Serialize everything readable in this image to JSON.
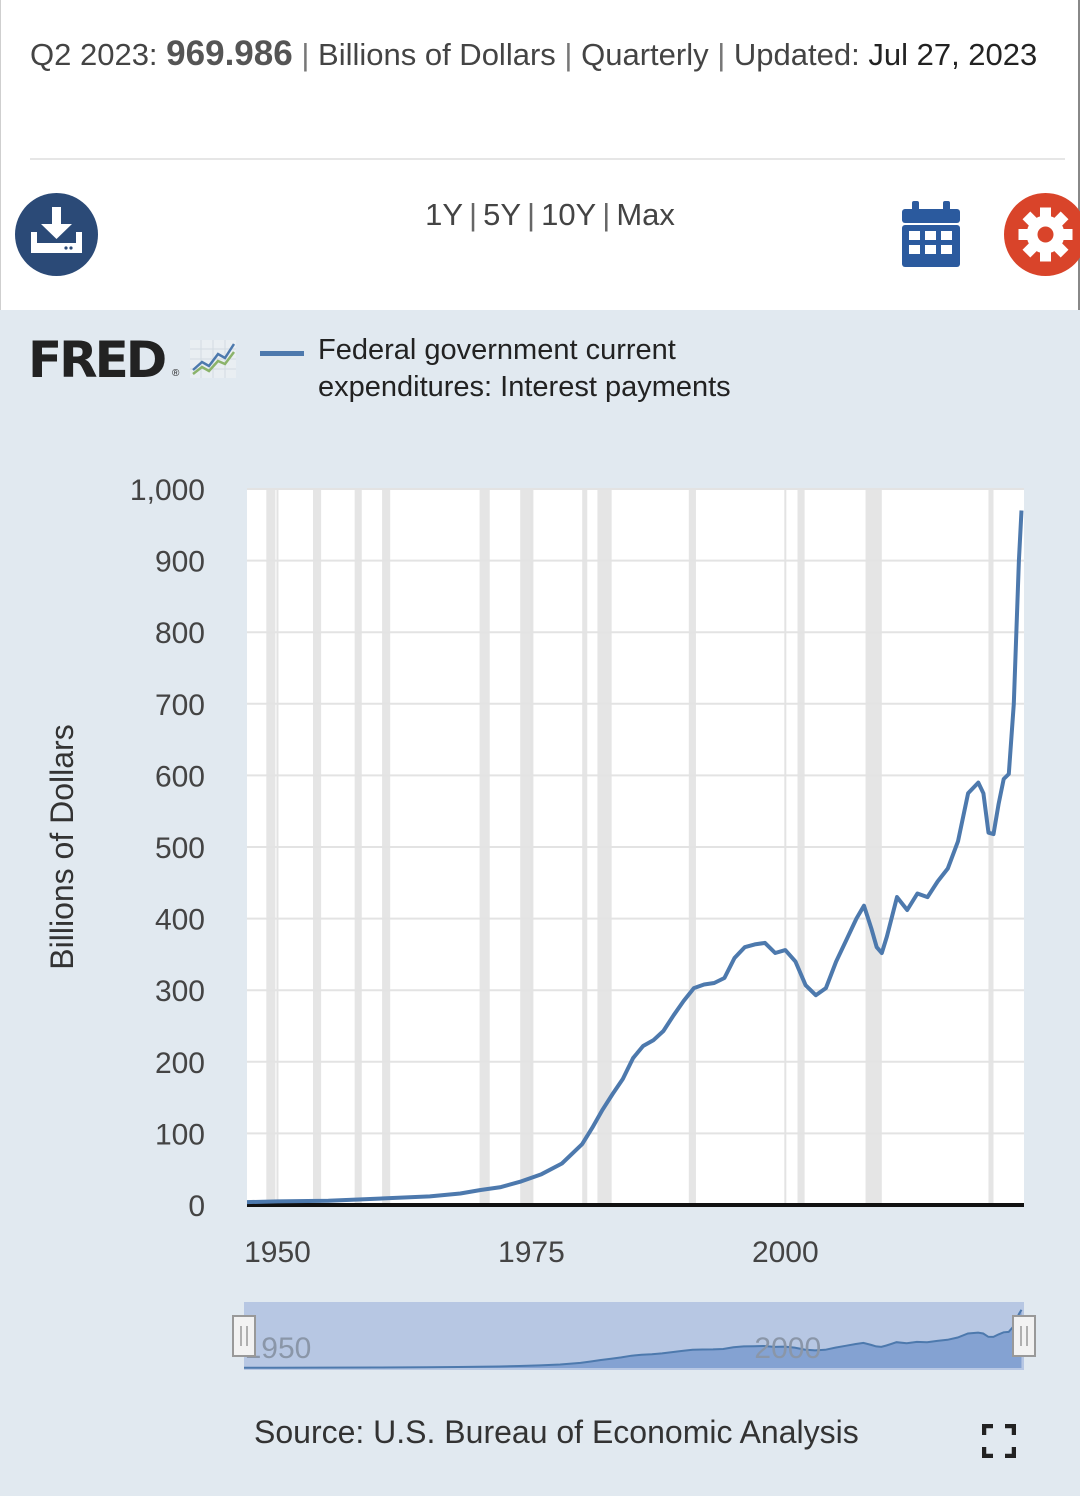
{
  "header": {
    "period": "Q2 2023:",
    "value": "969.986",
    "units": "Billions of Dollars",
    "frequency": "Quarterly",
    "updated_label": "Updated:",
    "updated_date": "Jul 27, 2023"
  },
  "toolbar": {
    "download_icon": "download-icon",
    "ranges": [
      "1Y",
      "5Y",
      "10Y",
      "Max"
    ],
    "calendar_icon": "calendar-icon",
    "settings_icon": "gear-icon"
  },
  "logo": {
    "text": "FRED",
    "icon": "line-chart-icon"
  },
  "legend": {
    "label": "Federal government current expenditures: Interest payments"
  },
  "source": "Source: U.S. Bureau of Economic Analysis",
  "colors": {
    "series": "#4d79ad",
    "panel_bg": "#e1e9f0",
    "recession": "#e5e5e5",
    "download": "#2b4a77",
    "settings": "#d9442a"
  },
  "chart_data": {
    "type": "line",
    "title": "Federal government current expenditures: Interest payments",
    "xlabel": "",
    "ylabel": "Billions of Dollars",
    "xlim": [
      1947,
      2023.5
    ],
    "ylim": [
      0,
      1000
    ],
    "yticks": [
      0,
      100,
      200,
      300,
      400,
      500,
      600,
      700,
      800,
      900,
      1000
    ],
    "ytick_labels": [
      "0",
      "100",
      "200",
      "300",
      "400",
      "500",
      "600",
      "700",
      "800",
      "900",
      "1,000"
    ],
    "xticks": [
      1950,
      1975,
      2000
    ],
    "xtick_labels": [
      "1950",
      "1975",
      "2000"
    ],
    "navigator_labels": [
      "1950",
      "2000"
    ],
    "recessions": [
      [
        1948.9,
        1949.8
      ],
      [
        1953.5,
        1954.3
      ],
      [
        1957.6,
        1958.3
      ],
      [
        1960.3,
        1961.1
      ],
      [
        1969.9,
        1970.9
      ],
      [
        1973.9,
        1975.2
      ],
      [
        1980.0,
        1980.5
      ],
      [
        1981.5,
        1982.9
      ],
      [
        1990.5,
        1991.2
      ],
      [
        2001.2,
        2001.9
      ],
      [
        2007.9,
        2009.5
      ],
      [
        2020.0,
        2020.5
      ]
    ],
    "series": [
      {
        "name": "Federal government current expenditures: Interest payments",
        "x": [
          1947,
          1950,
          1955,
          1960,
          1965,
          1968,
          1970,
          1972,
          1974,
          1976,
          1978,
          1980,
          1981,
          1982,
          1983,
          1984,
          1985,
          1986,
          1987,
          1988,
          1989,
          1990,
          1991,
          1992,
          1993,
          1994,
          1995,
          1996,
          1997,
          1998,
          1999,
          2000,
          2001,
          2002,
          2003,
          2004,
          2005,
          2006,
          2007,
          2007.75,
          2008.5,
          2009,
          2009.5,
          2010,
          2011,
          2012,
          2013,
          2014,
          2015,
          2016,
          2017,
          2018,
          2019,
          2019.5,
          2020,
          2020.5,
          2021,
          2021.5,
          2022,
          2022.5,
          2023,
          2023.25
        ],
        "y": [
          4,
          5,
          6,
          9,
          12,
          16,
          21,
          25,
          33,
          43,
          58,
          85,
          108,
          133,
          155,
          176,
          205,
          222,
          230,
          243,
          265,
          285,
          303,
          308,
          310,
          317,
          345,
          360,
          364,
          366,
          352,
          356,
          340,
          307,
          293,
          303,
          340,
          370,
          400,
          418,
          385,
          360,
          352,
          375,
          430,
          412,
          435,
          430,
          452,
          470,
          508,
          575,
          590,
          575,
          520,
          518,
          560,
          595,
          602,
          700,
          900,
          970
        ]
      }
    ]
  }
}
